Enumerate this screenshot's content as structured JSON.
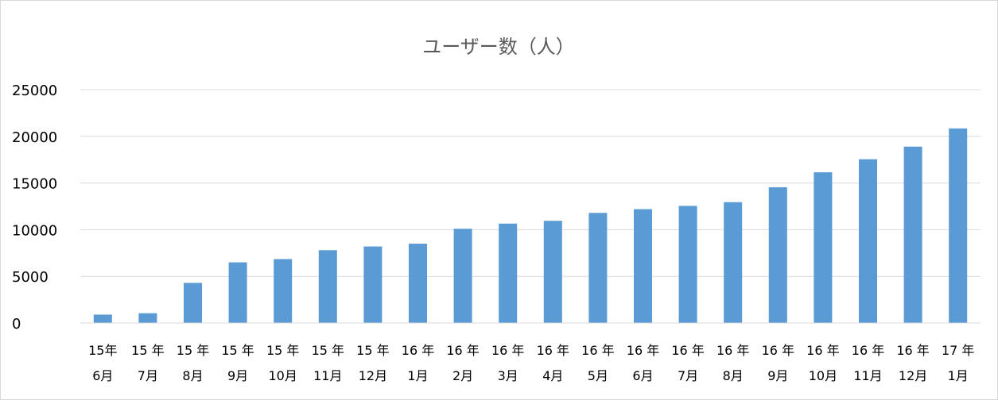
{
  "chart_data": {
    "type": "bar",
    "title": "ユーザー数（人）",
    "xlabel": "",
    "ylabel": "",
    "ylim": [
      0,
      25000
    ],
    "yticks": [
      "0",
      "5000",
      "10000",
      "15000",
      "20000",
      "25000"
    ],
    "categories": [
      {
        "year": "15年",
        "month": "6月"
      },
      {
        "year": "15 年",
        "month": "7月"
      },
      {
        "year": "15 年",
        "month": "8月"
      },
      {
        "year": "15 年",
        "month": "9月"
      },
      {
        "year": "15 年",
        "month": "10月"
      },
      {
        "year": "15 年",
        "month": "11月"
      },
      {
        "year": "15 年",
        "month": "12月"
      },
      {
        "year": "16 年",
        "month": "1月"
      },
      {
        "year": "16 年",
        "month": "2月"
      },
      {
        "year": "16 年",
        "month": "3月"
      },
      {
        "year": "16 年",
        "month": "4月"
      },
      {
        "year": "16 年",
        "month": "5月"
      },
      {
        "year": "16 年",
        "month": "6月"
      },
      {
        "year": "16 年",
        "month": "7月"
      },
      {
        "year": "16 年",
        "month": "8月"
      },
      {
        "year": "16 年",
        "month": "9月"
      },
      {
        "year": "16 年",
        "month": "10月"
      },
      {
        "year": "16 年",
        "month": "11月"
      },
      {
        "year": "16 年",
        "month": "12月"
      },
      {
        "year": "17 年",
        "month": "1月"
      }
    ],
    "values": [
      900,
      1050,
      4300,
      6500,
      6850,
      7800,
      8200,
      8500,
      10100,
      10650,
      10950,
      11800,
      12200,
      12550,
      12950,
      14550,
      16150,
      17550,
      18900,
      20850
    ],
    "grid": true,
    "legend": "none",
    "colors": {
      "bar": "#5b9bd5",
      "grid": "#d9d9d9",
      "axis": "#d9d9d9"
    }
  }
}
